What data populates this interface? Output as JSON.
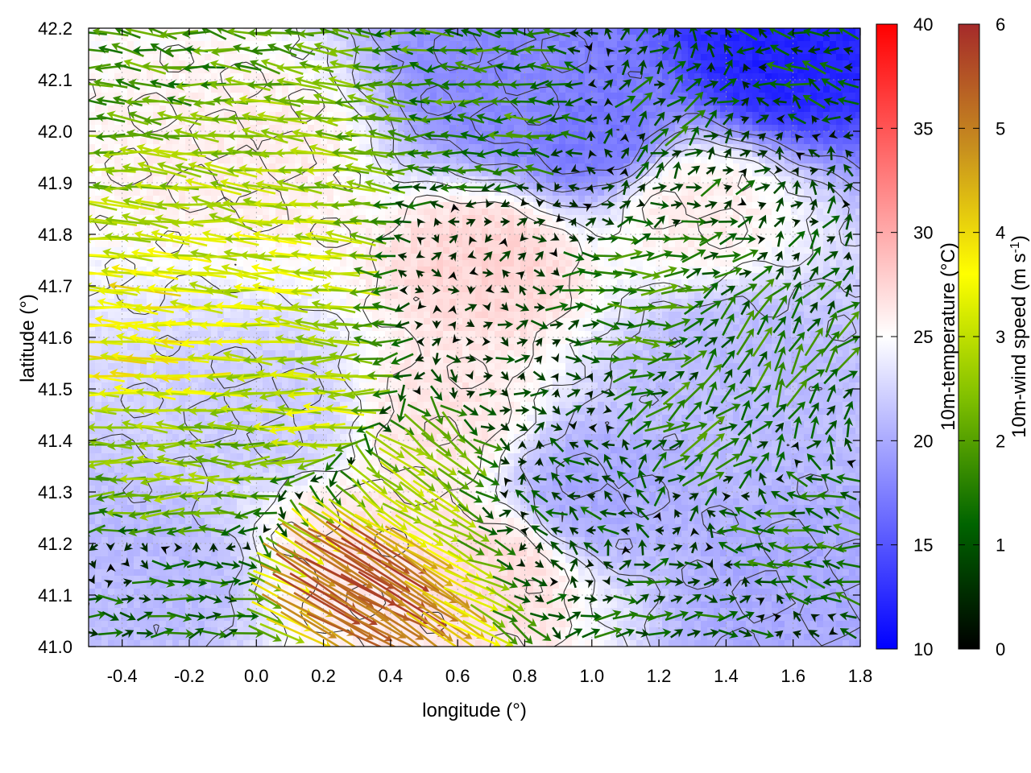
{
  "chart_data": {
    "type": "heatmap",
    "xlabel": "longitude (°)",
    "ylabel": "latitude (°)",
    "xlim": [
      -0.5,
      1.8
    ],
    "ylim": [
      41.0,
      42.2
    ],
    "x_ticks": [
      "-0.4",
      "-0.2",
      "0.0",
      "0.2",
      "0.4",
      "0.6",
      "0.8",
      "1.0",
      "1.2",
      "1.4",
      "1.6",
      "1.8"
    ],
    "x_tick_values": [
      -0.4,
      -0.2,
      0.0,
      0.2,
      0.4,
      0.6,
      0.8,
      1.0,
      1.2,
      1.4,
      1.6,
      1.8
    ],
    "y_ticks": [
      "41.0",
      "41.1",
      "41.2",
      "41.3",
      "41.4",
      "41.5",
      "41.6",
      "41.7",
      "41.8",
      "41.9",
      "42.0",
      "42.1",
      "42.2"
    ],
    "y_tick_values": [
      41.0,
      41.1,
      41.2,
      41.3,
      41.4,
      41.5,
      41.6,
      41.7,
      41.8,
      41.9,
      42.0,
      42.1,
      42.2
    ],
    "grid": true,
    "colorbars": [
      {
        "label": "10m-temperature (°C)",
        "range": [
          10,
          40
        ],
        "ticks": [
          "10",
          "15",
          "20",
          "25",
          "30",
          "35",
          "40"
        ],
        "tick_values": [
          10,
          15,
          20,
          25,
          30,
          35,
          40
        ],
        "colors": [
          "#0000ff",
          "#ffffff",
          "#ff0000"
        ]
      },
      {
        "label_main": "10m-wind speed (m s",
        "label_sup": "-1",
        "label_end": ")",
        "range": [
          0,
          6
        ],
        "ticks": [
          "0",
          "1",
          "2",
          "3",
          "4",
          "5",
          "6"
        ],
        "tick_values": [
          0,
          1,
          2,
          3,
          4,
          5,
          6
        ],
        "colors": [
          "#000000",
          "#006400",
          "#7fbf00",
          "#ffff00",
          "#c8901e",
          "#a52a2a"
        ]
      }
    ],
    "temperature_regions": [
      {
        "lon": 1.55,
        "lat": 42.15,
        "temp": 12
      },
      {
        "lon": 1.0,
        "lat": 42.0,
        "temp": 17
      },
      {
        "lon": 0.75,
        "lat": 42.08,
        "temp": 18
      },
      {
        "lon": 1.6,
        "lat": 41.1,
        "temp": 20
      },
      {
        "lon": 1.4,
        "lat": 41.55,
        "temp": 21
      },
      {
        "lon": 1.0,
        "lat": 41.3,
        "temp": 20
      },
      {
        "lon": -0.3,
        "lat": 41.15,
        "temp": 21
      },
      {
        "lon": 0.05,
        "lat": 41.45,
        "temp": 22
      },
      {
        "lon": 0.7,
        "lat": 41.75,
        "temp": 27.5
      },
      {
        "lon": 0.7,
        "lat": 41.15,
        "temp": 27
      },
      {
        "lon": 0.3,
        "lat": 41.2,
        "temp": 26.5
      },
      {
        "lon": 0.0,
        "lat": 41.95,
        "temp": 26
      },
      {
        "lon": 1.3,
        "lat": 41.85,
        "temp": 26
      },
      {
        "lon": 0.55,
        "lat": 41.45,
        "temp": 26.5
      }
    ],
    "wind_regions": [
      {
        "lon": -0.3,
        "lat": 41.6,
        "u": -3.6,
        "v": 0.2
      },
      {
        "lon": 0.05,
        "lat": 41.7,
        "u": -3.2,
        "v": 0.3
      },
      {
        "lon": 0.0,
        "lat": 41.95,
        "u": -2.6,
        "v": 0.3
      },
      {
        "lon": -0.2,
        "lat": 42.15,
        "u": -1.8,
        "v": 0.2
      },
      {
        "lon": 0.2,
        "lat": 41.45,
        "u": -3.0,
        "v": 0.0
      },
      {
        "lon": -0.2,
        "lat": 41.3,
        "u": -2.4,
        "v": 0.0
      },
      {
        "lon": -0.2,
        "lat": 41.1,
        "u": 1.2,
        "v": 0.1
      },
      {
        "lon": 0.3,
        "lat": 41.12,
        "u": 4.6,
        "v": -2.8
      },
      {
        "lon": 0.45,
        "lat": 41.35,
        "u": 2.2,
        "v": -1.6
      },
      {
        "lon": 0.7,
        "lat": 41.7,
        "u": 0.2,
        "v": 0.1
      },
      {
        "lon": 0.85,
        "lat": 41.55,
        "u": 0.6,
        "v": 0.0
      },
      {
        "lon": 1.1,
        "lat": 41.65,
        "u": 1.6,
        "v": 0.0
      },
      {
        "lon": 1.3,
        "lat": 41.4,
        "u": 1.2,
        "v": 0.8
      },
      {
        "lon": 1.5,
        "lat": 41.55,
        "u": 0.8,
        "v": 1.2
      },
      {
        "lon": 1.6,
        "lat": 41.2,
        "u": -1.4,
        "v": 0.2
      },
      {
        "lon": 1.3,
        "lat": 41.05,
        "u": 1.2,
        "v": 0.1
      },
      {
        "lon": 0.7,
        "lat": 42.05,
        "u": -1.6,
        "v": 0.0
      },
      {
        "lon": 1.3,
        "lat": 42.05,
        "u": 0.8,
        "v": 0.6
      },
      {
        "lon": 1.6,
        "lat": 42.15,
        "u": -1.0,
        "v": 0.2
      },
      {
        "lon": 1.0,
        "lat": 41.3,
        "u": -0.8,
        "v": 0.5
      }
    ],
    "colors": {
      "frame": "#000000",
      "grid": "#a0a0a0",
      "contour": "#333333"
    }
  }
}
